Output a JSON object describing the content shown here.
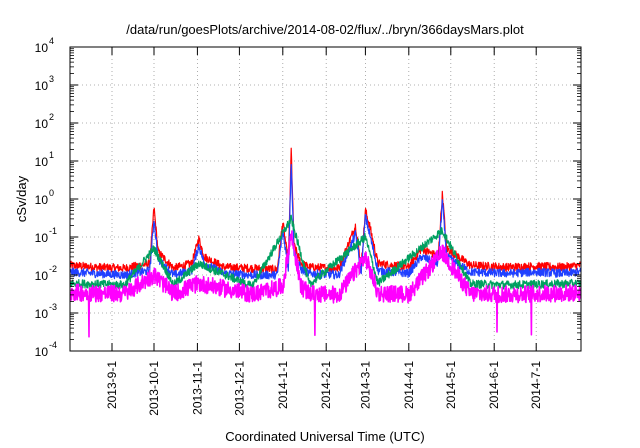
{
  "chart_data": {
    "type": "line",
    "title": "/data/run/goesPlots/archive/2014-08-02/flux/../bryn/366daysMars.plot",
    "xlabel": "Coordinated Universal Time (UTC)",
    "ylabel": "cSv/day",
    "yscale": "log",
    "ylim": [
      0.0001,
      10000
    ],
    "xlim": [
      "2013-08-02",
      "2014-08-02"
    ],
    "grid": true,
    "legend": "none",
    "y_ticks": [
      {
        "base": "10",
        "exp": "-4",
        "value": 0.0001
      },
      {
        "base": "10",
        "exp": "-3",
        "value": 0.001
      },
      {
        "base": "10",
        "exp": "-2",
        "value": 0.01
      },
      {
        "base": "10",
        "exp": "-1",
        "value": 0.1
      },
      {
        "base": "10",
        "exp": "0",
        "value": 1
      },
      {
        "base": "10",
        "exp": "1",
        "value": 10
      },
      {
        "base": "10",
        "exp": "2",
        "value": 100
      },
      {
        "base": "10",
        "exp": "3",
        "value": 1000
      },
      {
        "base": "10",
        "exp": "4",
        "value": 10000
      }
    ],
    "x_ticks": [
      {
        "label": "2013-9-1",
        "date": "2013-09-01"
      },
      {
        "label": "2013-10-1",
        "date": "2013-10-01"
      },
      {
        "label": "2013-11-1",
        "date": "2013-11-01"
      },
      {
        "label": "2013-12-1",
        "date": "2013-12-01"
      },
      {
        "label": "2014-1-1",
        "date": "2014-01-01"
      },
      {
        "label": "2014-2-1",
        "date": "2014-02-01"
      },
      {
        "label": "2014-3-1",
        "date": "2014-03-01"
      },
      {
        "label": "2014-4-1",
        "date": "2014-04-01"
      },
      {
        "label": "2014-5-1",
        "date": "2014-05-01"
      },
      {
        "label": "2014-6-1",
        "date": "2014-06-01"
      },
      {
        "label": "2014-7-1",
        "date": "2014-07-01"
      }
    ],
    "series": [
      {
        "color": "#ff0000",
        "x": [
          "2013-08-02",
          "2013-08-20",
          "2013-09-10",
          "2013-09-28",
          "2013-10-01",
          "2013-10-04",
          "2013-10-15",
          "2013-10-28",
          "2013-11-02",
          "2013-11-06",
          "2013-11-20",
          "2013-12-10",
          "2013-12-28",
          "2014-01-01",
          "2014-01-05",
          "2014-01-07",
          "2014-01-09",
          "2014-01-14",
          "2014-01-20",
          "2014-02-10",
          "2014-02-22",
          "2014-02-26",
          "2014-03-01",
          "2014-03-04",
          "2014-03-10",
          "2014-04-01",
          "2014-04-10",
          "2014-04-22",
          "2014-04-25",
          "2014-04-28",
          "2014-05-15",
          "2014-06-10",
          "2014-07-01",
          "2014-07-20",
          "2014-08-02"
        ],
        "y": [
          0.018,
          0.016,
          0.015,
          0.02,
          0.6,
          0.04,
          0.015,
          0.02,
          0.09,
          0.03,
          0.016,
          0.015,
          0.014,
          0.25,
          0.02,
          20,
          0.06,
          0.02,
          0.016,
          0.015,
          0.2,
          0.016,
          0.5,
          0.2,
          0.02,
          0.016,
          0.05,
          0.03,
          1.4,
          0.05,
          0.018,
          0.016,
          0.017,
          0.016,
          0.018
        ]
      },
      {
        "color": "#2040ff",
        "x": [
          "2013-08-02",
          "2013-08-20",
          "2013-09-10",
          "2013-09-28",
          "2013-10-01",
          "2013-10-04",
          "2013-10-15",
          "2013-10-28",
          "2013-11-02",
          "2013-11-06",
          "2013-11-20",
          "2013-12-10",
          "2013-12-28",
          "2014-01-01",
          "2014-01-05",
          "2014-01-07",
          "2014-01-09",
          "2014-01-14",
          "2014-01-20",
          "2014-02-10",
          "2014-02-22",
          "2014-02-26",
          "2014-03-01",
          "2014-03-04",
          "2014-03-10",
          "2014-04-01",
          "2014-04-10",
          "2014-04-22",
          "2014-04-25",
          "2014-04-28",
          "2014-05-15",
          "2014-06-10",
          "2014-07-01",
          "2014-07-20",
          "2014-08-02"
        ],
        "y": [
          0.012,
          0.011,
          0.01,
          0.013,
          0.3,
          0.025,
          0.01,
          0.013,
          0.06,
          0.02,
          0.011,
          0.01,
          0.01,
          0.15,
          0.014,
          10,
          0.04,
          0.014,
          0.011,
          0.01,
          0.12,
          0.011,
          0.35,
          0.12,
          0.013,
          0.011,
          0.03,
          0.02,
          0.9,
          0.03,
          0.012,
          0.011,
          0.012,
          0.011,
          0.012
        ]
      },
      {
        "color": "#00a060",
        "x": [
          "2013-08-02",
          "2013-09-10",
          "2013-10-01",
          "2013-10-15",
          "2013-11-02",
          "2013-12-10",
          "2014-01-07",
          "2014-01-20",
          "2014-03-01",
          "2014-03-10",
          "2014-04-25",
          "2014-05-15",
          "2014-06-10",
          "2014-08-02"
        ],
        "y": [
          0.006,
          0.0055,
          0.05,
          0.0055,
          0.02,
          0.005,
          0.3,
          0.0055,
          0.1,
          0.006,
          0.15,
          0.0058,
          0.0055,
          0.006
        ]
      },
      {
        "color": "#ff00ff",
        "x": [
          "2013-08-02",
          "2013-08-20",
          "2013-09-10",
          "2013-10-01",
          "2013-10-15",
          "2013-11-02",
          "2013-12-10",
          "2014-01-01",
          "2014-01-07",
          "2014-01-14",
          "2014-01-20",
          "2014-02-10",
          "2014-03-01",
          "2014-03-10",
          "2014-04-01",
          "2014-04-25",
          "2014-05-15",
          "2014-06-10",
          "2014-07-01",
          "2014-08-02"
        ],
        "y": [
          0.0035,
          0.0033,
          0.0032,
          0.01,
          0.0032,
          0.006,
          0.0031,
          0.005,
          0.12,
          0.005,
          0.0032,
          0.003,
          0.03,
          0.0033,
          0.0031,
          0.04,
          0.0032,
          0.0031,
          0.0032,
          0.0034
        ]
      }
    ]
  }
}
